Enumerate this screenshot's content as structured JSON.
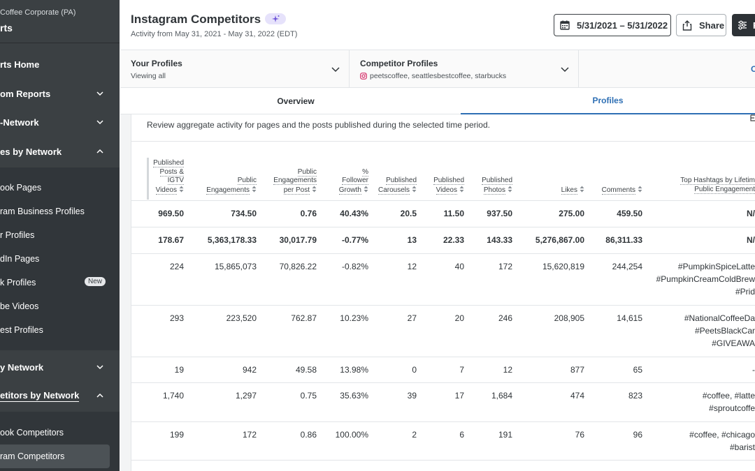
{
  "sidebar": {
    "org": "Coffee Corporate (PA)",
    "section": "rts",
    "items": [
      {
        "label": "rts Home"
      },
      {
        "label": "om Reports"
      },
      {
        "label": "-Network"
      },
      {
        "label": "es by Network"
      }
    ],
    "sub_items_1": [
      {
        "label": "ook Pages"
      },
      {
        "label": "ram Business Profiles"
      },
      {
        "label": "r Profiles"
      },
      {
        "label": "dIn Pages"
      },
      {
        "label": "k Profiles",
        "badge": "New"
      },
      {
        "label": "be Videos"
      },
      {
        "label": "est Profiles"
      }
    ],
    "items_2": [
      {
        "label": "y Network"
      },
      {
        "label": "etitors by Network"
      }
    ],
    "sub_items_2": [
      {
        "label": "ook Competitors"
      },
      {
        "label": "ram Competitors"
      }
    ]
  },
  "header": {
    "title": "Instagram Competitors",
    "subtitle": "Activity from May 31, 2021 - May 31, 2022 (EDT)",
    "date_range": "5/31/2021 – 5/31/2022",
    "share": "Share",
    "filter_label": "F"
  },
  "selectors": {
    "your_profiles": {
      "label": "Your Profiles",
      "value": "Viewing all"
    },
    "competitor_profiles": {
      "label": "Competitor Profiles",
      "value": "peetscoffee, seattlesbestcoffee, starbucks"
    },
    "third": "C"
  },
  "tabs": {
    "overview": "Overview",
    "profiles": "Profiles"
  },
  "description": "Review aggregate activity for pages and the posts published during the selected time period.",
  "table": {
    "headers": [
      [
        "Published",
        "Posts &",
        "IGTV",
        "Videos"
      ],
      [
        "Public",
        "Engagements"
      ],
      [
        "Public",
        "Engagements",
        "per Post"
      ],
      [
        "%",
        "Follower",
        "Growth"
      ],
      [
        "Published",
        "Carousels"
      ],
      [
        "Published",
        "Videos"
      ],
      [
        "Published",
        "Photos"
      ],
      [
        "Likes"
      ],
      [
        "Comments"
      ],
      [
        "Top Hashtags by Lifetim",
        "Public Engagement"
      ]
    ],
    "rows": [
      {
        "bold": true,
        "cells": [
          "969.50",
          "734.50",
          "0.76",
          "40.43%",
          "20.5",
          "11.50",
          "937.50",
          "275.00",
          "459.50"
        ],
        "hashtags": [
          "N/"
        ]
      },
      {
        "bold": true,
        "cells": [
          "178.67",
          "5,363,178.33",
          "30,017.79",
          "-0.77%",
          "13",
          "22.33",
          "143.33",
          "5,276,867.00",
          "86,311.33"
        ],
        "hashtags": [
          "N/"
        ]
      },
      {
        "bold": false,
        "cells": [
          "224",
          "15,865,073",
          "70,826.22",
          "-0.82%",
          "12",
          "40",
          "172",
          "15,620,819",
          "244,254"
        ],
        "hashtags": [
          "#PumpkinSpiceLatte",
          "#PumpkinCreamColdBrew",
          "#Prid"
        ]
      },
      {
        "bold": false,
        "cells": [
          "293",
          "223,520",
          "762.87",
          "10.23%",
          "27",
          "20",
          "246",
          "208,905",
          "14,615"
        ],
        "hashtags": [
          "#NationalCoffeeDa",
          "#PeetsBlackCar",
          "#GIVEAWA"
        ]
      },
      {
        "bold": false,
        "cells": [
          "19",
          "942",
          "49.58",
          "13.98%",
          "0",
          "7",
          "12",
          "877",
          "65"
        ],
        "hashtags": [
          "-"
        ]
      },
      {
        "bold": false,
        "cells": [
          "1,740",
          "1,297",
          "0.75",
          "35.63%",
          "39",
          "17",
          "1,684",
          "474",
          "823"
        ],
        "hashtags": [
          "#coffee, #latte",
          "#sproutcoffe"
        ]
      },
      {
        "bold": false,
        "cells": [
          "199",
          "172",
          "0.86",
          "100.00%",
          "2",
          "6",
          "191",
          "76",
          "96"
        ],
        "hashtags": [
          "#coffee, #chicago",
          "#barist"
        ]
      }
    ]
  }
}
